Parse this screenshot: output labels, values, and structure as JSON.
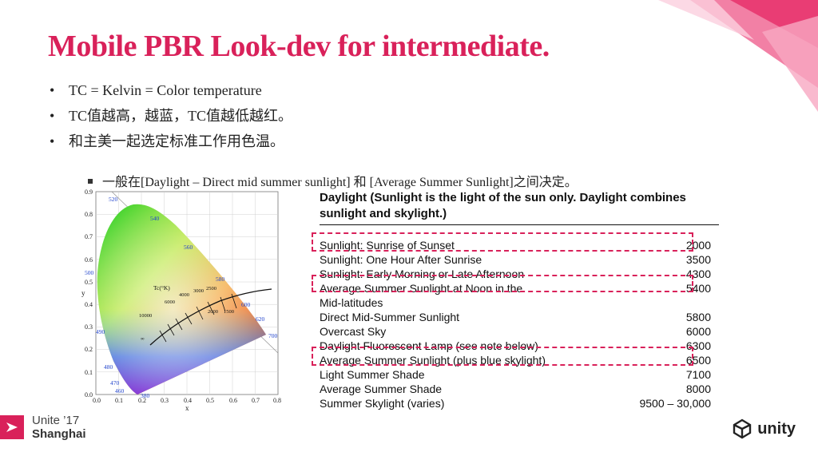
{
  "title": "Mobile PBR Look-dev for intermediate.",
  "bullets": [
    "TC = Kelvin = Color temperature",
    "TC值越高，越蓝，TC值越低越红。",
    "和主美一起选定标准工作用色温。"
  ],
  "sub_bullet": "一般在[Daylight – Direct mid summer sunlight] 和 [Average Summer Sunlight]之间决定。",
  "bullet_symbol": "•",
  "diagram": {
    "x_axis_label": "x",
    "y_axis_label": "y",
    "x_ticks": [
      "0.0",
      "0.1",
      "0.2",
      "0.3",
      "0.4",
      "0.5",
      "0.6",
      "0.7",
      "0.8"
    ],
    "y_ticks": [
      "0.0",
      "0.1",
      "0.2",
      "0.3",
      "0.4",
      "0.5",
      "0.6",
      "0.7",
      "0.8",
      "0.9"
    ],
    "wavelength_labels": [
      "520",
      "540",
      "560",
      "580",
      "600",
      "620",
      "700",
      "500",
      "490",
      "480",
      "470",
      "460",
      "380"
    ],
    "locus_title": "Tc(°K)",
    "temp_labels": [
      "10000",
      "6000",
      "4000",
      "3000",
      "2500",
      "2000",
      "1500",
      "∞"
    ]
  },
  "table": {
    "header": "Daylight   (Sunlight is the light of the sun only.  Daylight combines sunlight and skylight.)",
    "rows": [
      {
        "label": "Sunlight:  Sunrise of Sunset",
        "value": "2000"
      },
      {
        "label": "Sunlight:  One Hour After Sunrise",
        "value": "3500"
      },
      {
        "label": "Sunlight:  Early Morning or Late Afternoon",
        "value": "4300"
      },
      {
        "label": "Average Summer Sunlight at Noon in the",
        "value": "5400"
      },
      {
        "label": "Mid-latitudes",
        "value": ""
      },
      {
        "label": "Direct Mid-Summer Sunlight",
        "value": "5800"
      },
      {
        "label": "Overcast Sky",
        "value": "6000"
      },
      {
        "label": "Daylight Fluorescent Lamp (see note below)",
        "value": "6300"
      },
      {
        "label": "Average Summer Sunlight (plus blue skylight)",
        "value": "6500"
      },
      {
        "label": "Light Summer Shade",
        "value": "7100"
      },
      {
        "label": "Average Summer Shade",
        "value": "8000"
      },
      {
        "label": "Summer Skylight (varies)",
        "value": "9500 – 30,000"
      }
    ]
  },
  "footer": {
    "event_line1": "Unite ’17",
    "event_line2": "Shanghai",
    "brand": "unity"
  },
  "colors": {
    "accent": "#d9215a",
    "text": "#222222"
  }
}
